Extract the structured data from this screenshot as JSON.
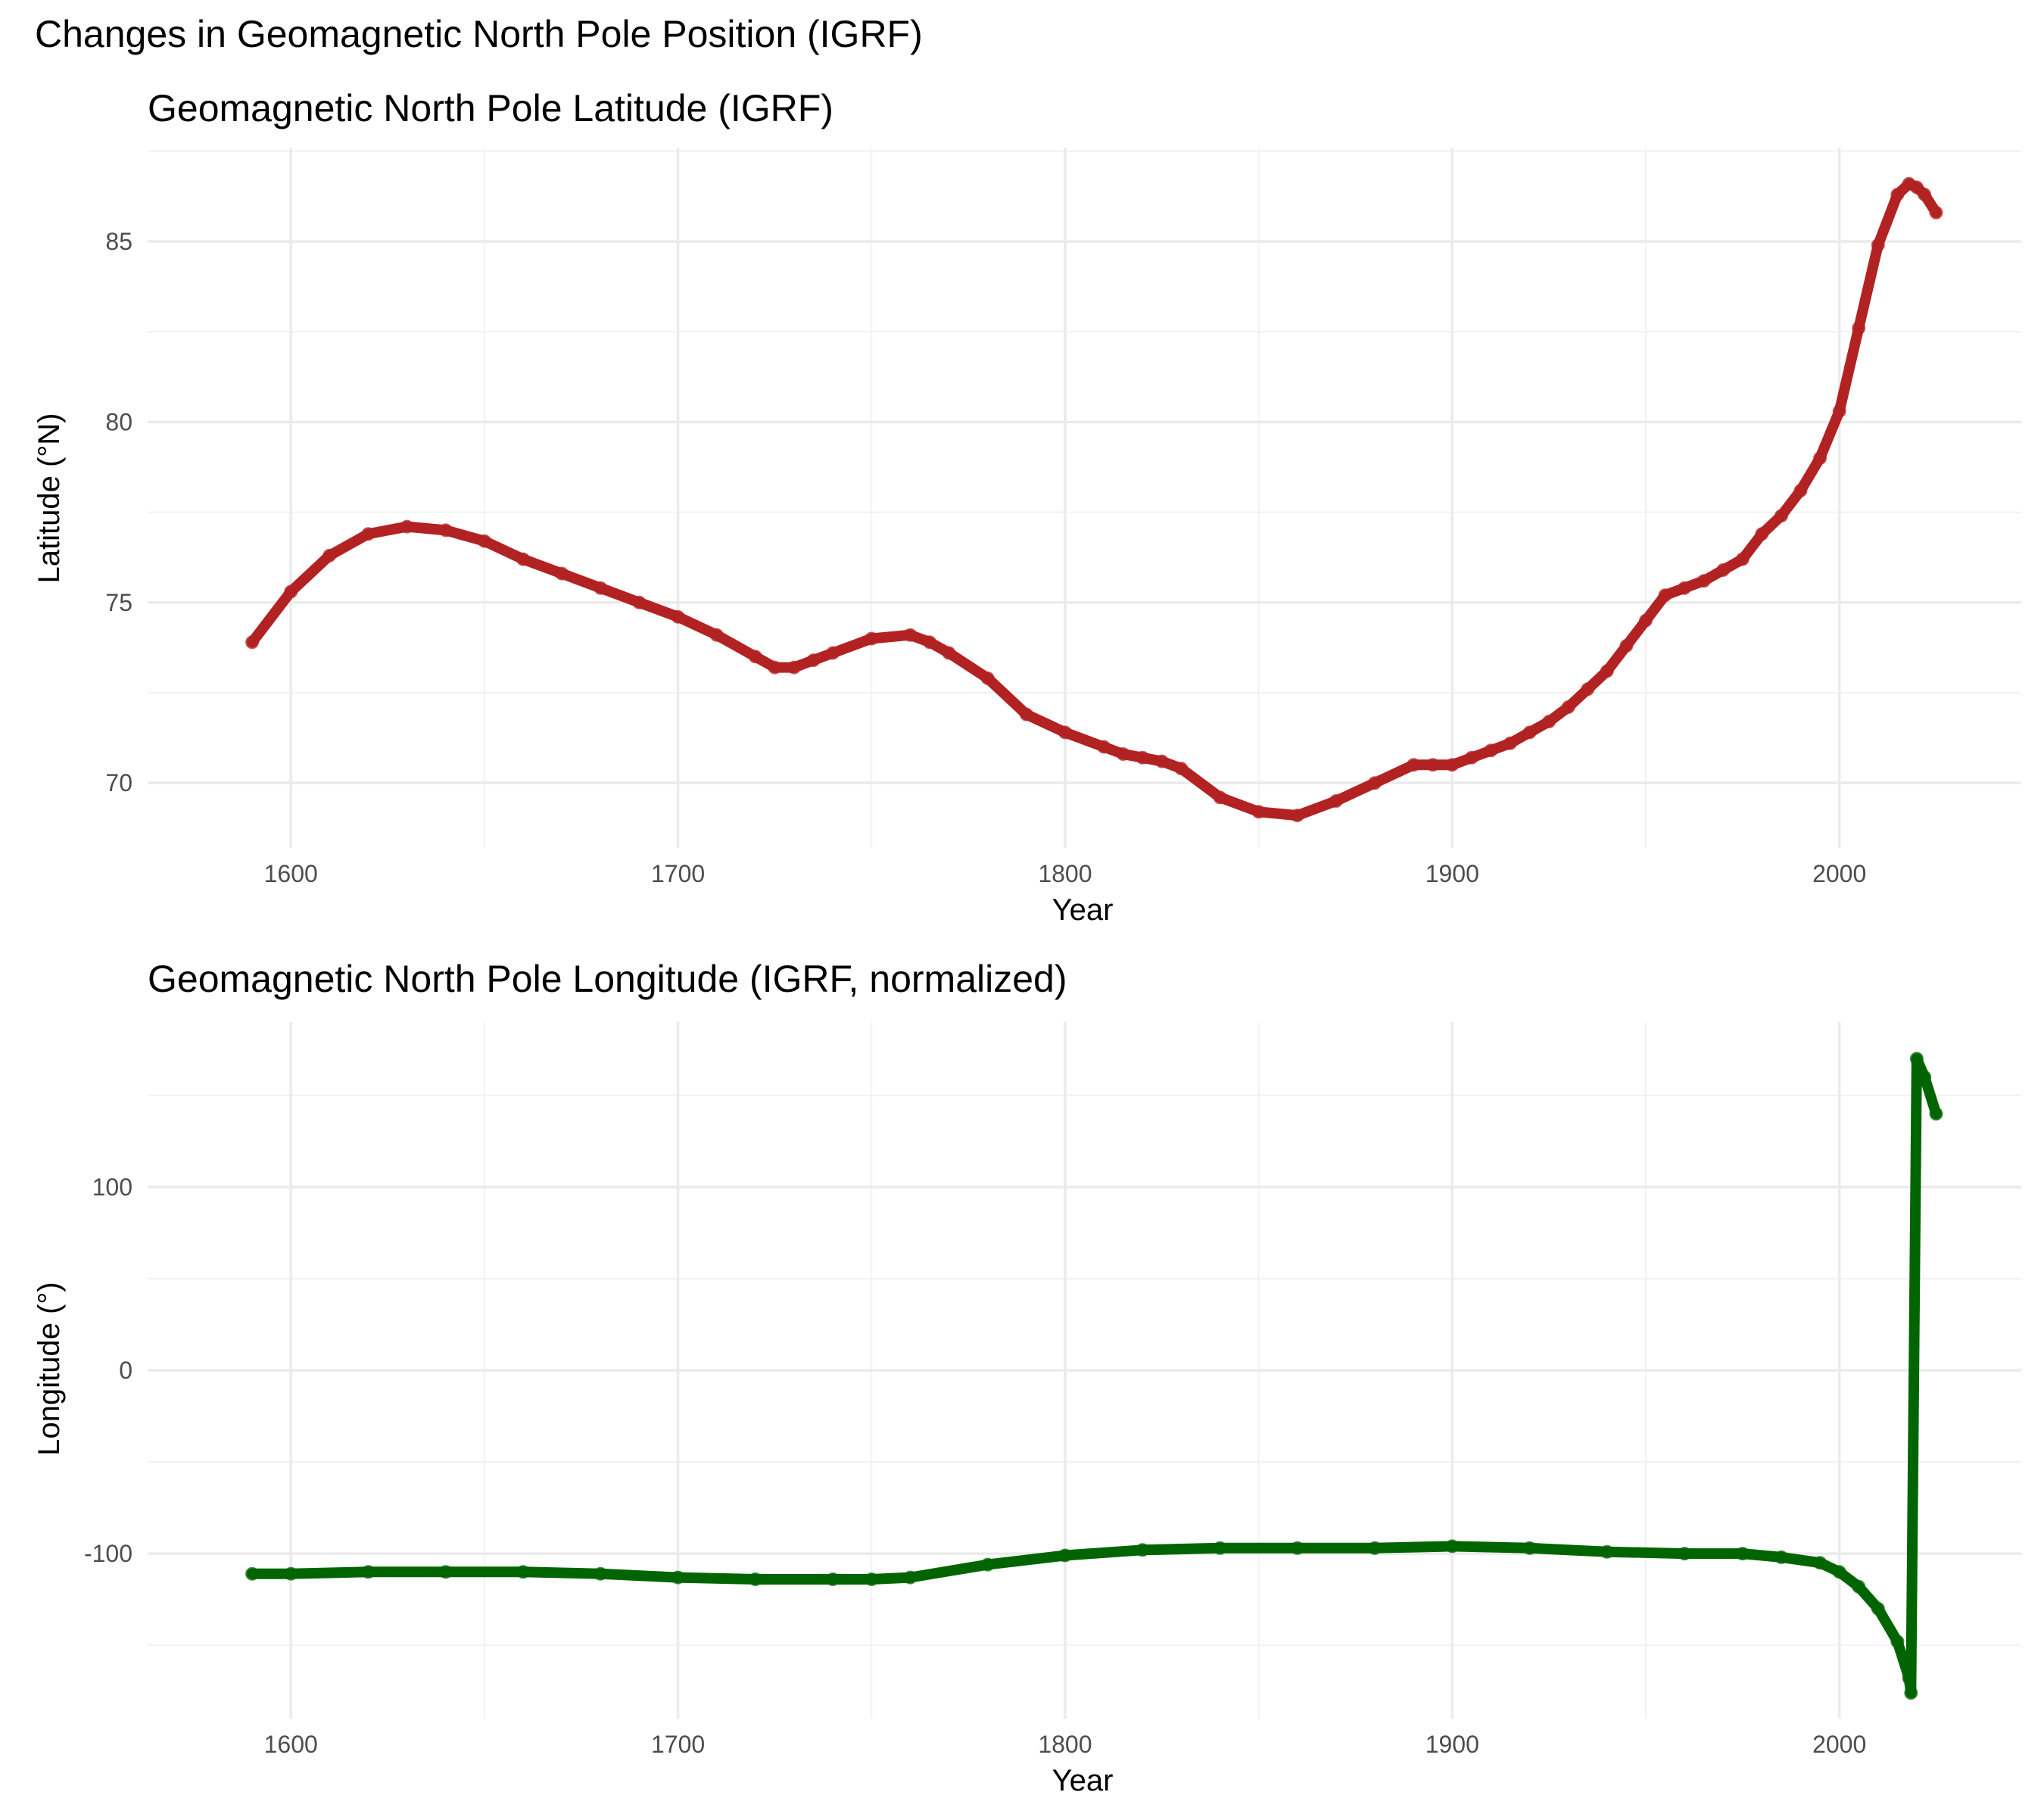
{
  "figure_title": "Changes in Geomagnetic North Pole Position (IGRF)",
  "chart_data": [
    {
      "type": "line",
      "title": "Geomagnetic North Pole Latitude (IGRF)",
      "xlabel": "Year",
      "ylabel": "Latitude (°N)",
      "xlim": [
        1563,
        2047
      ],
      "ylim": [
        68.2,
        87.6
      ],
      "x_ticks": [
        1600,
        1700,
        1800,
        1900,
        2000
      ],
      "y_ticks": [
        70,
        75,
        80,
        85
      ],
      "color": "#b22222",
      "markers": true,
      "grid": true,
      "x": [
        1590,
        1600,
        1610,
        1620,
        1630,
        1640,
        1650,
        1660,
        1670,
        1680,
        1690,
        1700,
        1710,
        1720,
        1725,
        1730,
        1735,
        1740,
        1750,
        1760,
        1765,
        1770,
        1780,
        1790,
        1800,
        1810,
        1815,
        1820,
        1825,
        1830,
        1840,
        1850,
        1860,
        1870,
        1880,
        1890,
        1895,
        1900,
        1905,
        1910,
        1915,
        1920,
        1925,
        1930,
        1935,
        1940,
        1945,
        1950,
        1955,
        1960,
        1965,
        1970,
        1975,
        1980,
        1985,
        1990,
        1995,
        2000,
        2005,
        2010,
        2015,
        2018,
        2020,
        2022,
        2025
      ],
      "y": [
        73.9,
        75.3,
        76.3,
        76.9,
        77.1,
        77.0,
        76.7,
        76.2,
        75.8,
        75.4,
        75.0,
        74.6,
        74.1,
        73.5,
        73.2,
        73.2,
        73.4,
        73.6,
        74.0,
        74.1,
        73.9,
        73.6,
        72.9,
        71.9,
        71.4,
        71.0,
        70.8,
        70.7,
        70.6,
        70.4,
        69.6,
        69.2,
        69.1,
        69.5,
        70.0,
        70.5,
        70.5,
        70.5,
        70.7,
        70.9,
        71.1,
        71.4,
        71.7,
        72.1,
        72.6,
        73.1,
        73.8,
        74.5,
        75.2,
        75.4,
        75.6,
        75.9,
        76.2,
        76.9,
        77.4,
        78.1,
        79.0,
        80.3,
        82.6,
        84.9,
        86.3,
        86.6,
        86.5,
        86.3,
        85.8
      ]
    },
    {
      "type": "line",
      "title": "Geomagnetic North Pole Longitude (IGRF, normalized)",
      "xlabel": "Year",
      "ylabel": "Longitude (°)",
      "xlim": [
        1563,
        2047
      ],
      "ylim": [
        -190,
        190
      ],
      "x_ticks": [
        1600,
        1700,
        1800,
        1900,
        2000
      ],
      "y_ticks": [
        -100,
        0,
        100
      ],
      "color": "#006400",
      "markers": true,
      "grid": true,
      "x": [
        1590,
        1600,
        1620,
        1640,
        1660,
        1680,
        1700,
        1720,
        1740,
        1750,
        1760,
        1780,
        1800,
        1820,
        1840,
        1860,
        1880,
        1900,
        1920,
        1940,
        1960,
        1975,
        1985,
        1995,
        2000,
        2005,
        2010,
        2015,
        2018,
        2018.5,
        2020,
        2022,
        2025
      ],
      "y": [
        -111,
        -111,
        -110,
        -110,
        -110,
        -111,
        -113,
        -114,
        -114,
        -114,
        -113,
        -106,
        -101,
        -98,
        -97,
        -97,
        -97,
        -96,
        -97,
        -99,
        -100,
        -100,
        -102,
        -105,
        -110,
        -118,
        -130,
        -148,
        -168,
        -176,
        170,
        160,
        140
      ]
    }
  ]
}
